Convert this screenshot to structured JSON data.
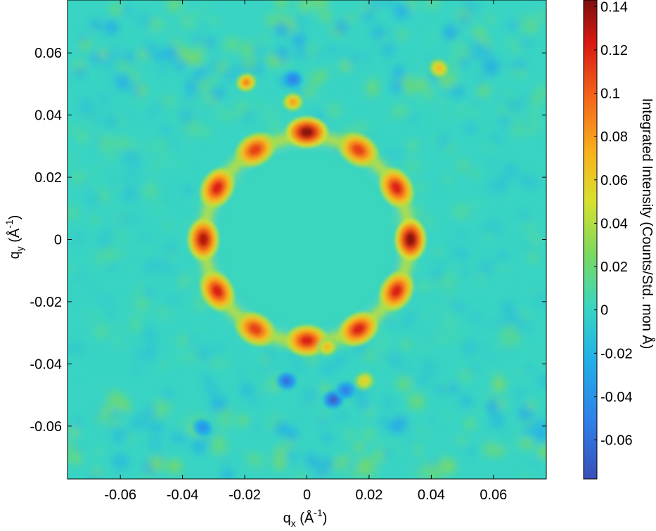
{
  "chart_data": {
    "type": "heatmap",
    "title": "",
    "xlabel": {
      "base": "q",
      "sub": "x",
      "unit_open": " (Å",
      "sup": "-1",
      "unit_close": ")"
    },
    "ylabel": {
      "base": "q",
      "sub": "y",
      "unit_open": " (Å",
      "sup": "-1",
      "unit_close": ")"
    },
    "xlim": [
      -0.077,
      0.077
    ],
    "ylim": [
      -0.077,
      0.077
    ],
    "x_ticks": [
      -0.06,
      -0.04,
      -0.02,
      0,
      0.02,
      0.04,
      0.06
    ],
    "x_tick_labels": [
      "-0.06",
      "-0.04",
      "-0.02",
      "0",
      "0.02",
      "0.04",
      "0.06"
    ],
    "y_ticks": [
      -0.06,
      -0.04,
      -0.02,
      0,
      0.02,
      0.04,
      0.06
    ],
    "y_tick_labels": [
      "-0.06",
      "-0.04",
      "-0.02",
      "0",
      "0.02",
      "0.04",
      "0.06"
    ],
    "colorbar": {
      "label": "Integrated Intensity (Counts/Std. mon Å)",
      "clim": [
        -0.078,
        0.143
      ],
      "ticks": [
        -0.06,
        -0.04,
        -0.02,
        0,
        0.02,
        0.04,
        0.06,
        0.08,
        0.1,
        0.12,
        0.14
      ],
      "tick_labels": [
        "-0.06",
        "-0.04",
        "-0.02",
        "0",
        "0.02",
        "0.04",
        "0.06",
        "0.08",
        "0.1",
        "0.12",
        "0.14"
      ],
      "colormap": "jet"
    },
    "background_value": 0.0,
    "ring_radius": 0.033,
    "peaks": [
      {
        "qx": 0.0333,
        "qy": 0.0,
        "intensity": 0.14
      },
      {
        "qx": 0.0288,
        "qy": 0.0166,
        "intensity": 0.12
      },
      {
        "qx": 0.0166,
        "qy": 0.0288,
        "intensity": 0.11
      },
      {
        "qx": 0.0,
        "qy": 0.0345,
        "intensity": 0.14
      },
      {
        "qx": -0.0166,
        "qy": 0.0288,
        "intensity": 0.11
      },
      {
        "qx": -0.0288,
        "qy": 0.0166,
        "intensity": 0.12
      },
      {
        "qx": -0.0333,
        "qy": 0.0,
        "intensity": 0.13
      },
      {
        "qx": -0.0288,
        "qy": -0.0166,
        "intensity": 0.12
      },
      {
        "qx": -0.0166,
        "qy": -0.0288,
        "intensity": 0.11
      },
      {
        "qx": 0.0,
        "qy": -0.0325,
        "intensity": 0.12
      },
      {
        "qx": 0.0166,
        "qy": -0.0288,
        "intensity": 0.12
      },
      {
        "qx": 0.0288,
        "qy": -0.0166,
        "intensity": 0.12
      },
      {
        "qx": -0.0195,
        "qy": 0.0505,
        "intensity": 0.09
      },
      {
        "qx": -0.0045,
        "qy": 0.0442,
        "intensity": 0.08
      },
      {
        "qx": 0.0065,
        "qy": -0.0345,
        "intensity": 0.07
      },
      {
        "qx": 0.0425,
        "qy": 0.055,
        "intensity": 0.07
      },
      {
        "qx": 0.0185,
        "qy": -0.0455,
        "intensity": 0.06
      }
    ],
    "dips": [
      {
        "qx": 0.0085,
        "qy": -0.0515,
        "intensity": -0.07
      },
      {
        "qx": -0.0065,
        "qy": -0.0455,
        "intensity": -0.06
      },
      {
        "qx": -0.0045,
        "qy": 0.0515,
        "intensity": -0.05
      },
      {
        "qx": 0.0125,
        "qy": -0.0485,
        "intensity": -0.05
      },
      {
        "qx": -0.0335,
        "qy": -0.0605,
        "intensity": -0.04
      }
    ]
  }
}
